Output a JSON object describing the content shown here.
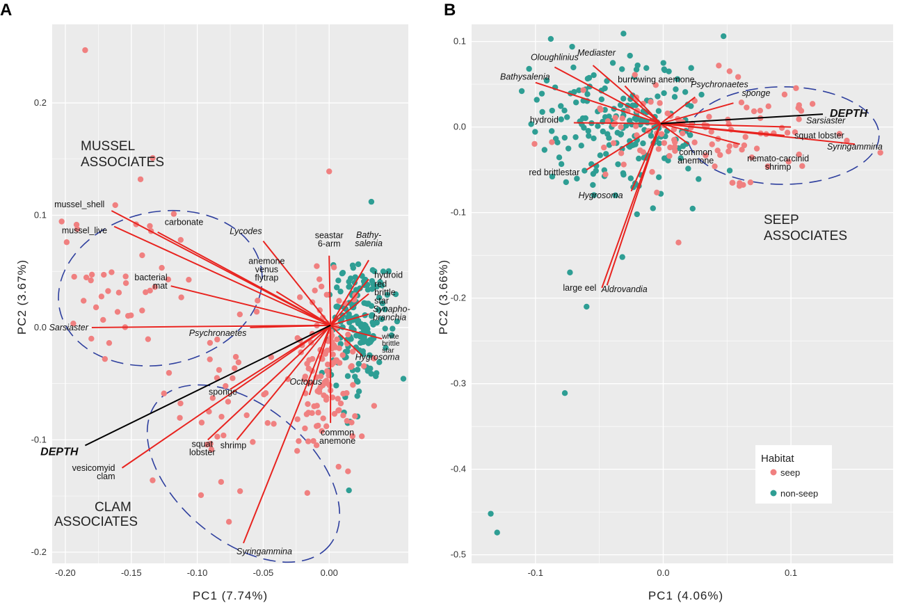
{
  "colors": {
    "seep": "#F08080",
    "nonseep": "#2E9E94",
    "vector": "#E8231F",
    "depth": "#000000",
    "ellipse": "#2E3F9E",
    "panel_bg": "#EBEBEB",
    "grid": "#FFFFFF"
  },
  "chart_data": [
    {
      "panel": "A",
      "type": "scatter",
      "xlabel": "PC1 (7.74%)",
      "ylabel": "PC2 (3.67%)",
      "xlim": [
        -0.21,
        0.06
      ],
      "ylim": [
        -0.21,
        0.27
      ],
      "xticks": [
        -0.2,
        -0.15,
        -0.1,
        -0.05,
        0.0
      ],
      "xtick_labels": [
        "-0.20",
        "-0.15",
        "-0.10",
        "-0.05",
        "0.00"
      ],
      "yticks": [
        -0.2,
        -0.1,
        0.0,
        0.1,
        0.2
      ],
      "ytick_labels": [
        "-0.2",
        "-0.1",
        "0.0",
        "0.1",
        "0.2"
      ],
      "origin": [
        0.001,
        0.002
      ],
      "vectors": [
        {
          "label": "mussel_shell",
          "x": -0.165,
          "y": 0.104,
          "italic": false
        },
        {
          "label": "mussel_live",
          "x": -0.163,
          "y": 0.09,
          "italic": false
        },
        {
          "label": "carbonate",
          "x": -0.13,
          "y": 0.085,
          "italic": false
        },
        {
          "label": "bacterial mat",
          "x": -0.12,
          "y": 0.037,
          "italic": false
        },
        {
          "label": "Sarsiaster",
          "x": -0.18,
          "y": 0.0,
          "italic": true
        },
        {
          "label": "Psychronaetes",
          "x": -0.06,
          "y": 0.0,
          "italic": true
        },
        {
          "label": "Lycodes",
          "x": -0.05,
          "y": 0.077,
          "italic": true
        },
        {
          "label": "anemone venus flytrap",
          "x": -0.04,
          "y": 0.032,
          "italic": false
        },
        {
          "label": "seastar 6-arm",
          "x": 0.0,
          "y": 0.064,
          "italic": false
        },
        {
          "label": "Bathy-salenia",
          "x": 0.03,
          "y": 0.06,
          "italic": true
        },
        {
          "label": "hydroid",
          "x": 0.03,
          "y": 0.043,
          "italic": false
        },
        {
          "label": "red brittle star",
          "x": 0.03,
          "y": 0.03,
          "italic": false
        },
        {
          "label": "Synapho-branchia",
          "x": 0.03,
          "y": 0.012,
          "italic": true
        },
        {
          "label": "white brittle star",
          "x": 0.04,
          "y": -0.01,
          "italic": false
        },
        {
          "label": "Hygrosoma",
          "x": 0.025,
          "y": -0.025,
          "italic": true
        },
        {
          "label": "Octopus",
          "x": -0.015,
          "y": -0.06,
          "italic": true
        },
        {
          "label": "sponge",
          "x": -0.075,
          "y": -0.055,
          "italic": false
        },
        {
          "label": "squat lobster",
          "x": -0.092,
          "y": -0.1,
          "italic": false
        },
        {
          "label": "shrimp",
          "x": -0.07,
          "y": -0.1,
          "italic": false
        },
        {
          "label": "common anemone",
          "x": 0.001,
          "y": -0.085,
          "italic": false
        },
        {
          "label": "vesicomyid clam",
          "x": -0.157,
          "y": -0.125,
          "italic": false
        },
        {
          "label": "Syringammina",
          "x": -0.065,
          "y": -0.192,
          "italic": true
        }
      ],
      "depth_vector": {
        "label": "DEPTH",
        "x": -0.185,
        "y": -0.105
      },
      "ellipses": [
        {
          "label": "MUSSEL ASSOCIATES",
          "cx": -0.128,
          "cy": 0.035,
          "rx": 0.078,
          "ry": 0.068,
          "angle": -12
        },
        {
          "label": "CLAM ASSOCIATES",
          "cx": -0.065,
          "cy": -0.13,
          "rx": 0.085,
          "ry": 0.06,
          "angle": 40
        }
      ],
      "legend": null
    },
    {
      "panel": "B",
      "type": "scatter",
      "xlabel": "PC1 (4.06%)",
      "ylabel": "PC2 (3.66%)",
      "xlim": [
        -0.15,
        0.18
      ],
      "ylim": [
        -0.51,
        0.12
      ],
      "xticks": [
        -0.1,
        0.0,
        0.1
      ],
      "xtick_labels": [
        "-0.1",
        "0.0",
        "0.1"
      ],
      "yticks": [
        -0.5,
        -0.4,
        -0.3,
        -0.2,
        -0.1,
        0.0,
        0.1
      ],
      "ytick_labels": [
        "-0.5",
        "-0.4",
        "-0.3",
        "-0.2",
        "-0.1",
        "0.0",
        "0.1"
      ],
      "origin": [
        -0.002,
        0.004
      ],
      "vectors": [
        {
          "label": "Oloughlinius",
          "x": -0.085,
          "y": 0.07,
          "italic": true
        },
        {
          "label": "Mediaster",
          "x": -0.055,
          "y": 0.072,
          "italic": true
        },
        {
          "label": "Bathysalenia",
          "x": -0.1,
          "y": 0.052,
          "italic": true
        },
        {
          "label": "burrowing anemone",
          "x": -0.03,
          "y": 0.048,
          "italic": false
        },
        {
          "label": "Psychronaetes",
          "x": 0.025,
          "y": 0.035,
          "italic": true
        },
        {
          "label": "sponge",
          "x": 0.055,
          "y": 0.028,
          "italic": true
        },
        {
          "label": "hydroid",
          "x": -0.07,
          "y": 0.005,
          "italic": false
        },
        {
          "label": "Sarsiaster",
          "x": 0.1,
          "y": 0.0,
          "italic": true
        },
        {
          "label": "squat lobster",
          "x": 0.095,
          "y": -0.01,
          "italic": false
        },
        {
          "label": "Syringammina",
          "x": 0.15,
          "y": -0.02,
          "italic": true
        },
        {
          "label": "common anemone",
          "x": 0.02,
          "y": -0.02,
          "italic": false
        },
        {
          "label": "nemato-carcinid shrimp",
          "x": 0.06,
          "y": -0.02,
          "italic": false
        },
        {
          "label": "red brittlestar",
          "x": -0.06,
          "y": -0.05,
          "italic": false
        },
        {
          "label": "Hygrosoma",
          "x": -0.025,
          "y": -0.075,
          "italic": true
        },
        {
          "label": "large eel",
          "x": -0.048,
          "y": -0.188,
          "italic": false
        },
        {
          "label": "Aldrovandia",
          "x": -0.044,
          "y": -0.185,
          "italic": true
        }
      ],
      "depth_vector": {
        "label": "DEPTH",
        "x": 0.125,
        "y": 0.015
      },
      "ellipses": [
        {
          "label": "SEEP ASSOCIATES",
          "cx": 0.094,
          "cy": -0.01,
          "rx": 0.075,
          "ry": 0.057,
          "angle": 0
        }
      ],
      "legend": {
        "title": "Habitat",
        "entries": [
          "seep",
          "non-seep"
        ]
      }
    }
  ]
}
